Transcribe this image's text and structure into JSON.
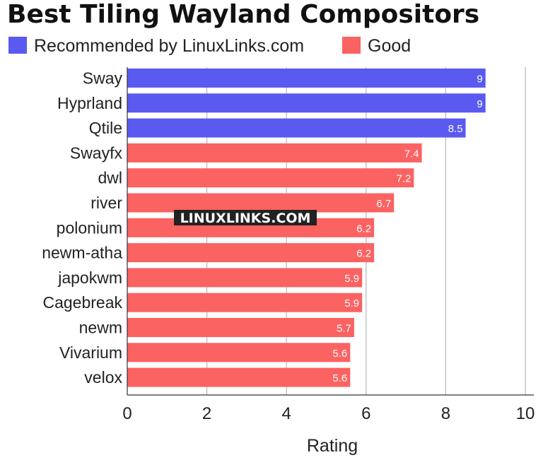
{
  "chart_data": {
    "type": "bar",
    "orientation": "horizontal",
    "title": "Best Tiling Wayland Compositors",
    "xlabel": "Rating",
    "ylabel": "",
    "xlim": [
      0,
      10
    ],
    "xticks": [
      0,
      2,
      4,
      6,
      8,
      10
    ],
    "grid": true,
    "legend_position": "top",
    "legend": [
      {
        "name": "Recommended by LinuxLinks.com",
        "color": "#5a5af0"
      },
      {
        "name": "Good",
        "color": "#fb6262"
      }
    ],
    "categories": [
      "Sway",
      "Hyprland",
      "Qtile",
      "Swayfx",
      "dwl",
      "river",
      "polonium",
      "newm-atha",
      "japokwm",
      "Cagebreak",
      "newm",
      "Vivarium",
      "velox"
    ],
    "values": [
      9,
      9,
      8.5,
      7.4,
      7.2,
      6.7,
      6.2,
      6.2,
      5.9,
      5.9,
      5.7,
      5.6,
      5.6
    ],
    "value_labels": [
      "9",
      "9",
      "8.5",
      "7.4",
      "7.2",
      "6.7",
      "6.2",
      "6.2",
      "5.9",
      "5.9",
      "5.7",
      "5.6",
      "5.6"
    ],
    "groups": [
      0,
      0,
      0,
      1,
      1,
      1,
      1,
      1,
      1,
      1,
      1,
      1,
      1
    ],
    "watermark": "LINUXLINKS.COM"
  }
}
